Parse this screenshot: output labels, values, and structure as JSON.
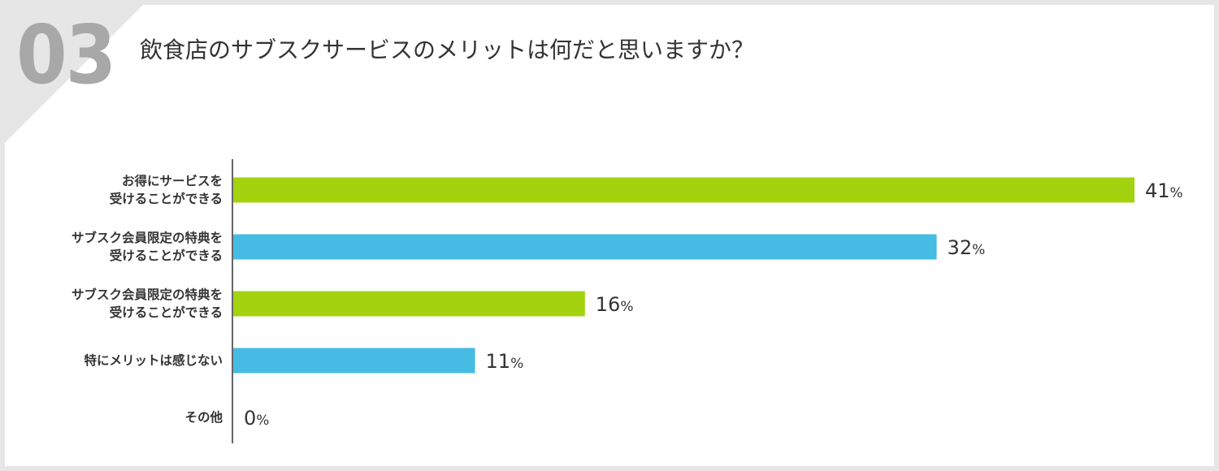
{
  "question_number": "03",
  "title": "飲食店のサブスクサービスのメリットは何だと思いますか？",
  "colors": {
    "green": "#a3d30f",
    "blue": "#46bbe4",
    "axis": "#333333",
    "corner": "#e6e6e6",
    "number": "#a8a8a8"
  },
  "chart_data": {
    "type": "bar",
    "orientation": "horizontal",
    "title": "飲食店のサブスクサービスのメリットは何だと思いますか？",
    "unit": "%",
    "xlim": [
      0,
      41
    ],
    "grid": false,
    "legend": "none",
    "categories": [
      [
        "お得にサービスを",
        "受けることができる"
      ],
      [
        "サブスク会員限定の特典を",
        "受けることができる"
      ],
      [
        "サブスク会員限定の特典を",
        "受けることができる"
      ],
      [
        "特にメリットは感じない"
      ],
      [
        "その他"
      ]
    ],
    "values": [
      41,
      32,
      16,
      11,
      0
    ],
    "bar_colors": [
      "#a3d30f",
      "#46bbe4",
      "#a3d30f",
      "#46bbe4",
      "#46bbe4"
    ]
  }
}
